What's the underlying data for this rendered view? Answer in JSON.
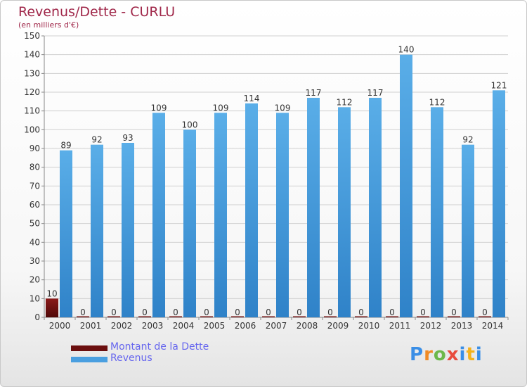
{
  "title": "Revenus/Dette - CURLU",
  "subtitle": "(en milliers d'€)",
  "logo_text": "Proxiti",
  "chart_data": {
    "type": "bar",
    "categories": [
      "2000",
      "2001",
      "2002",
      "2003",
      "2004",
      "2005",
      "2006",
      "2007",
      "2008",
      "2009",
      "2010",
      "2011",
      "2012",
      "2013",
      "2014"
    ],
    "series": [
      {
        "name": "Montant de la Dette",
        "color": "#6b0f0f",
        "values": [
          10,
          0,
          0,
          0,
          0,
          0,
          0,
          0,
          0,
          0,
          0,
          0,
          0,
          0,
          0
        ]
      },
      {
        "name": "Revenus",
        "color": "#4a9fe0",
        "values": [
          89,
          92,
          93,
          109,
          100,
          109,
          114,
          109,
          117,
          112,
          117,
          140,
          112,
          92,
          121
        ]
      }
    ],
    "ylim": [
      0,
      150
    ],
    "yticks": [
      0,
      10,
      20,
      30,
      40,
      50,
      60,
      70,
      80,
      90,
      100,
      110,
      120,
      130,
      140,
      150
    ],
    "grid": true,
    "legend_position": "bottom-left"
  }
}
